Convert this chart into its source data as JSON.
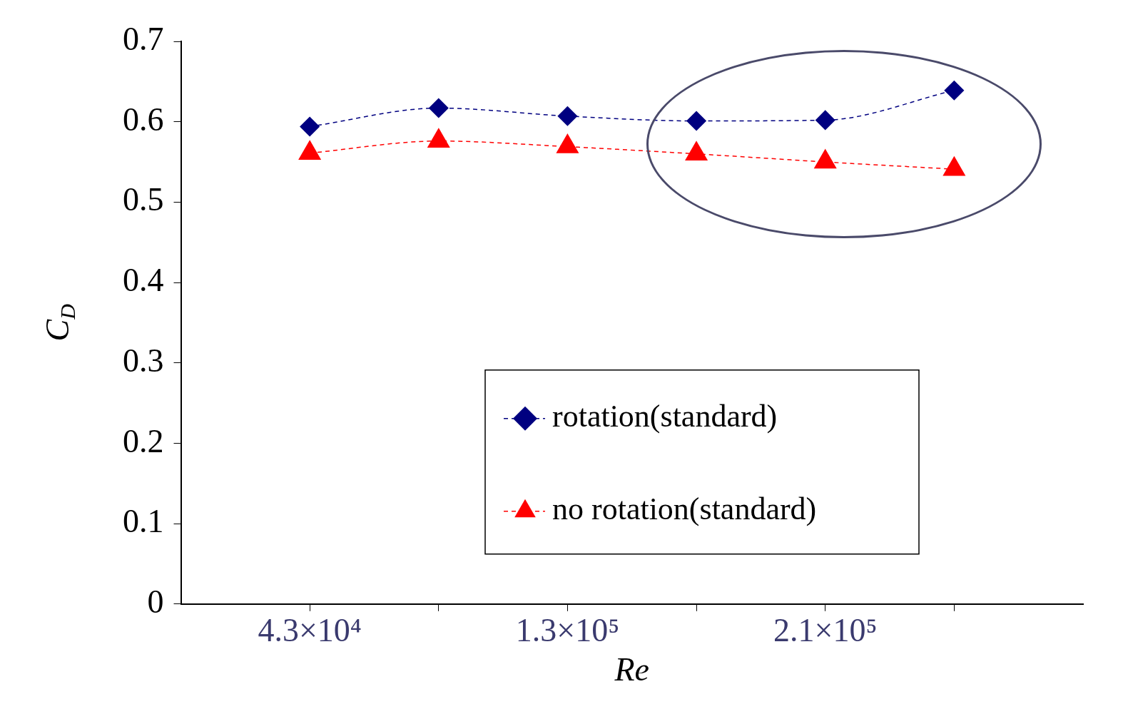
{
  "chart_data": {
    "type": "line",
    "categories": [
      "4.3×10⁴",
      null,
      "1.3×10⁵",
      null,
      "2.1×10⁵",
      null
    ],
    "xlabel": "Re",
    "ylabel": "C$_{D}$",
    "series": [
      {
        "name": "rotation(standard)",
        "color": "#000080",
        "marker": "diamond",
        "values": [
          0.594,
          0.617,
          0.607,
          0.601,
          0.602,
          0.639
        ]
      },
      {
        "name": "no rotation(standard)",
        "color": "#ff0000",
        "marker": "triangle",
        "values": [
          0.561,
          0.576,
          0.569,
          0.56,
          0.55,
          0.541
        ]
      }
    ],
    "ylim": [
      0,
      0.7
    ],
    "yticks": [
      0,
      0.1,
      0.2,
      0.3,
      0.4,
      0.5,
      0.6,
      0.7
    ],
    "grid": false,
    "legend": "bottom right",
    "line_style": "dashed"
  }
}
